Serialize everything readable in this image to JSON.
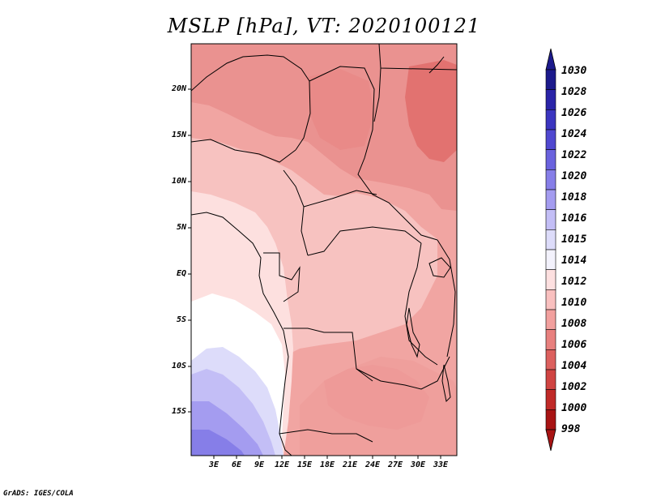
{
  "title": "MSLP [hPa], VT: 2020100121",
  "credit": "GrADS: IGES/COLA",
  "map": {
    "lat_labels": [
      "20N",
      "15N",
      "10N",
      "5N",
      "EQ",
      "5S",
      "10S",
      "15S"
    ],
    "lon_labels": [
      "3E",
      "6E",
      "9E",
      "12E",
      "15E",
      "18E",
      "21E",
      "24E",
      "27E",
      "30E",
      "33E"
    ],
    "lon_range": [
      0,
      35
    ],
    "lat_range": [
      -20,
      25
    ]
  },
  "colorbar": {
    "labels": [
      "1030",
      "1028",
      "1026",
      "1024",
      "1022",
      "1020",
      "1018",
      "1016",
      "1015",
      "1014",
      "1012",
      "1010",
      "1008",
      "1006",
      "1004",
      "1002",
      "1000",
      "998"
    ],
    "colors": [
      "#1c1a8c",
      "#2a24a8",
      "#3b35c0",
      "#5048d0",
      "#6a62de",
      "#867ee8",
      "#a49cf0",
      "#c3bef6",
      "#dddcfa",
      "#f3f2fc",
      "#fde0e0",
      "#f9c0bf",
      "#f2a09e",
      "#e8807e",
      "#dc605e",
      "#d04442",
      "#c02a28",
      "#a81414"
    ]
  }
}
